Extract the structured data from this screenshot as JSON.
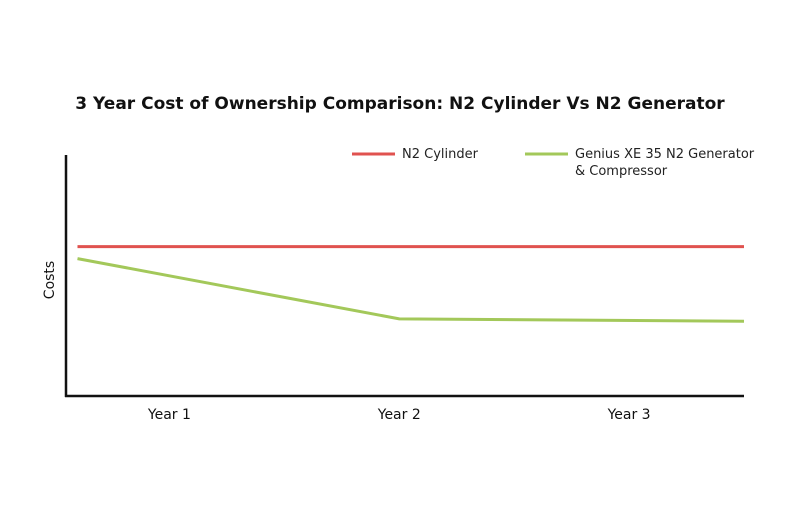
{
  "chart_data": {
    "type": "line",
    "title": "3 Year Cost of Ownership Comparison: N2 Cylinder Vs N2 Generator",
    "y_label": "Costs",
    "xlim": [
      0.55,
      3.5
    ],
    "xticks": [
      {
        "value": 1,
        "label": "Year 1"
      },
      {
        "value": 2,
        "label": "Year 2"
      },
      {
        "value": 3,
        "label": "Year 3"
      }
    ],
    "ylim": [
      0,
      100
    ],
    "legend": "top",
    "series": [
      {
        "name": "N2 Cylinder",
        "color": "#e0524f",
        "x": [
          0.6,
          2,
          3.5
        ],
        "values": [
          62,
          62,
          62
        ]
      },
      {
        "name": "Genius XE 35 N2 Generator & Compressor",
        "color": "#a3c85a",
        "x": [
          0.6,
          2,
          3.5
        ],
        "values": [
          57,
          32,
          31
        ]
      }
    ]
  }
}
